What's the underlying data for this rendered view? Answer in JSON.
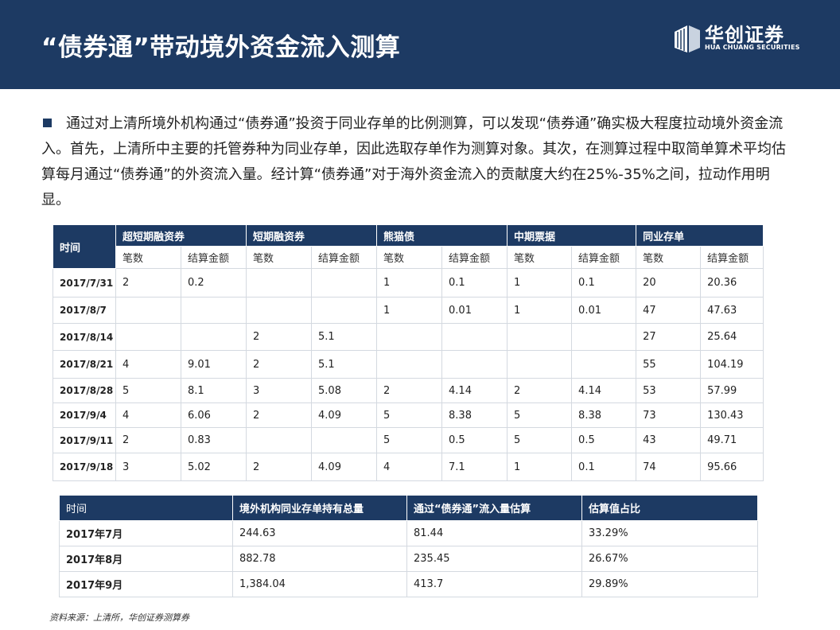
{
  "header": {
    "title": "“债券通”带动境外资金流入测算",
    "logo_name": "华创证券",
    "logo_sub": "HUA CHUANG SECURITIES"
  },
  "paragraph": "通过对上清所境外机构通过“债券通”投资于同业存单的比例测算，可以发现“债券通”确实极大程度拉动境外资金流入。首先，上清所中主要的托管券种为同业存单，因此选取存单作为测算对象。其次，在测算过程中取简单算术平均估算每月通过“债券通”的外资流入量。经计算“债券通”对于海外资金流入的贡献度大约在25%-35%之间，拉动作用明显。",
  "table1": {
    "time_label": "时间",
    "groups": [
      "超短期融资券",
      "短期融资券",
      "熊猫债",
      "中期票据",
      "同业存单"
    ],
    "subheaders": [
      "笔数",
      "结算金额",
      "笔数",
      "结算金额",
      "笔数",
      "结算金额",
      "笔数",
      "结算金额",
      "笔数",
      "结算金额"
    ],
    "rows": [
      {
        "date": "2017/7/31",
        "cells": [
          "2",
          "0.2",
          "",
          "",
          "1",
          "0.1",
          "1",
          "0.1",
          "20",
          "20.36"
        ]
      },
      {
        "date": "2017/8/7",
        "cells": [
          "",
          "",
          "",
          "",
          "1",
          "0.01",
          "1",
          "0.01",
          "47",
          "47.63"
        ]
      },
      {
        "date": "2017/8/14",
        "cells": [
          "",
          "",
          "2",
          "5.1",
          "",
          "",
          "",
          "",
          "27",
          "25.64"
        ]
      },
      {
        "date": "2017/8/21",
        "cells": [
          "4",
          "9.01",
          "2",
          "5.1",
          "",
          "",
          "",
          "",
          "55",
          "104.19"
        ]
      },
      {
        "date": "2017/8/28",
        "cells": [
          "5",
          "8.1",
          "3",
          "5.08",
          "2",
          "4.14",
          "2",
          "4.14",
          "53",
          "57.99"
        ]
      },
      {
        "date": "2017/9/4",
        "cells": [
          "4",
          "6.06",
          "2",
          "4.09",
          "5",
          "8.38",
          "5",
          "8.38",
          "73",
          "130.43"
        ]
      },
      {
        "date": "2017/9/11",
        "cells": [
          "2",
          "0.83",
          "",
          "",
          "5",
          "0.5",
          "5",
          "0.5",
          "43",
          "49.71"
        ]
      },
      {
        "date": "2017/9/18",
        "cells": [
          "3",
          "5.02",
          "2",
          "4.09",
          "4",
          "7.1",
          "1",
          "0.1",
          "74",
          "95.66"
        ]
      }
    ]
  },
  "table2": {
    "headers": [
      "时间",
      "境外机构同业存单持有总量",
      "通过“债券通”流入量估算",
      "估算值占比"
    ],
    "rows": [
      [
        "2017年7月",
        "244.63",
        "81.44",
        "33.29%"
      ],
      [
        "2017年8月",
        "882.78",
        "235.45",
        "26.67%"
      ],
      [
        "2017年9月",
        "1,384.04",
        "413.7",
        "29.89%"
      ]
    ]
  },
  "source": "资料来源：上清所，华创证券测算券"
}
